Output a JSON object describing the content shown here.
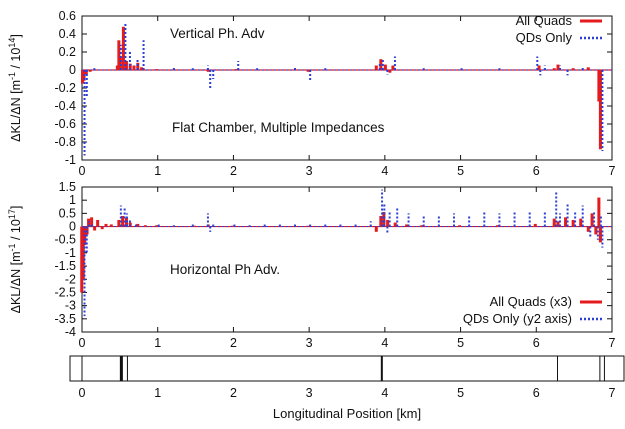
{
  "chart_data": [
    {
      "type": "line",
      "panel": "top",
      "ylabel_html": [
        "ΔKL/ΔN  [m",
        "-1",
        " / 10",
        "14",
        "]"
      ],
      "xlim": [
        0,
        7
      ],
      "ylim": [
        -1,
        0.6
      ],
      "yticks": [
        "0.6",
        "0.4",
        "0.2",
        "0",
        "-0.2",
        "-0.4",
        "-0.6",
        "-0.8",
        "-1"
      ],
      "xticks": [
        "0",
        "1",
        "2",
        "3",
        "4",
        "5",
        "6",
        "7"
      ],
      "annotations": [
        "Vertical Ph. Adv",
        "Flat Chamber, Multiple Impedances"
      ],
      "legend_position": "top-right",
      "series": [
        {
          "name": "All Quads",
          "color": "#e41a1c",
          "style": "impulse",
          "points": [
            [
              0.02,
              -0.15
            ],
            [
              0.04,
              -0.12
            ],
            [
              0.07,
              -0.05
            ],
            [
              0.12,
              -0.02
            ],
            [
              0.48,
              0.05
            ],
            [
              0.5,
              0.33
            ],
            [
              0.52,
              0.15
            ],
            [
              0.56,
              0.48
            ],
            [
              0.6,
              0.1
            ],
            [
              0.65,
              0.07
            ],
            [
              0.7,
              0.05
            ],
            [
              0.75,
              0.08
            ],
            [
              0.8,
              0.03
            ],
            [
              1.0,
              0.01
            ],
            [
              1.68,
              -0.02
            ],
            [
              2.05,
              0.01
            ],
            [
              3.0,
              -0.02
            ],
            [
              3.9,
              0.05
            ],
            [
              3.96,
              0.12
            ],
            [
              4.02,
              0.06
            ],
            [
              4.08,
              -0.03
            ],
            [
              4.12,
              0.05
            ],
            [
              6.05,
              0.05
            ],
            [
              6.25,
              0.02
            ],
            [
              6.3,
              0.06
            ],
            [
              6.5,
              0.02
            ],
            [
              6.7,
              0.03
            ],
            [
              6.84,
              -0.35
            ],
            [
              6.86,
              -0.88
            ]
          ]
        },
        {
          "name": "QDs Only",
          "color": "#2b3fd6",
          "style": "impulse",
          "points": [
            [
              0.02,
              -0.95
            ],
            [
              0.05,
              -0.3
            ],
            [
              0.15,
              0.02
            ],
            [
              0.5,
              0.28
            ],
            [
              0.56,
              0.52
            ],
            [
              0.62,
              0.22
            ],
            [
              0.72,
              0.12
            ],
            [
              0.8,
              0.33
            ],
            [
              1.2,
              0.03
            ],
            [
              1.45,
              0.02
            ],
            [
              1.65,
              0.05
            ],
            [
              1.68,
              -0.2
            ],
            [
              1.72,
              -0.1
            ],
            [
              2.05,
              0.1
            ],
            [
              2.3,
              0.02
            ],
            [
              2.8,
              0.03
            ],
            [
              3.0,
              -0.12
            ],
            [
              3.2,
              0.02
            ],
            [
              3.92,
              0.08
            ],
            [
              3.96,
              0.12
            ],
            [
              4.02,
              -0.05
            ],
            [
              4.12,
              0.15
            ],
            [
              4.5,
              0.02
            ],
            [
              5.0,
              0.02
            ],
            [
              5.5,
              0.02
            ],
            [
              6.0,
              0.15
            ],
            [
              6.04,
              -0.06
            ],
            [
              6.1,
              0.05
            ],
            [
              6.3,
              0.05
            ],
            [
              6.4,
              -0.06
            ],
            [
              6.6,
              0.03
            ],
            [
              6.86,
              -0.9
            ]
          ]
        }
      ]
    },
    {
      "type": "line",
      "panel": "bottom",
      "ylabel_html": [
        "ΔKL/ΔN  [m",
        "-1",
        " / 10",
        "17",
        "]"
      ],
      "xlim": [
        0,
        7
      ],
      "ylim": [
        -4,
        1.5
      ],
      "yticks": [
        "1.5",
        "1",
        "0.5",
        "0",
        "-0.5",
        "-1",
        "-1.5",
        "-2",
        "-2.5",
        "-3",
        "-3.5",
        "-4"
      ],
      "xticks": [
        "0",
        "1",
        "2",
        "3",
        "4",
        "5",
        "6",
        "7"
      ],
      "annotations": [
        "Horizontal Ph Adv."
      ],
      "legend_position": "bottom-right",
      "series": [
        {
          "name": "All Quads (x3)",
          "color": "#e41a1c",
          "style": "impulse",
          "points": [
            [
              0.01,
              -2.5
            ],
            [
              0.03,
              -2.0
            ],
            [
              0.05,
              -0.7
            ],
            [
              0.08,
              -0.3
            ],
            [
              0.1,
              0.3
            ],
            [
              0.14,
              0.35
            ],
            [
              0.18,
              -0.15
            ],
            [
              0.22,
              0.25
            ],
            [
              0.28,
              -0.1
            ],
            [
              0.33,
              0.1
            ],
            [
              0.4,
              0.08
            ],
            [
              0.5,
              0.25
            ],
            [
              0.55,
              0.4
            ],
            [
              0.6,
              0.32
            ],
            [
              0.65,
              0.15
            ],
            [
              0.75,
              0.1
            ],
            [
              0.85,
              0.05
            ],
            [
              1.0,
              0.05
            ],
            [
              1.5,
              0.03
            ],
            [
              1.68,
              0.08
            ],
            [
              2.0,
              0.03
            ],
            [
              2.5,
              0.02
            ],
            [
              3.0,
              0.03
            ],
            [
              3.5,
              0.02
            ],
            [
              3.9,
              -0.2
            ],
            [
              3.96,
              0.4
            ],
            [
              4.0,
              0.55
            ],
            [
              4.05,
              0.25
            ],
            [
              4.15,
              0.15
            ],
            [
              4.3,
              0.08
            ],
            [
              4.5,
              0.05
            ],
            [
              5.0,
              0.05
            ],
            [
              5.5,
              0.05
            ],
            [
              6.0,
              0.1
            ],
            [
              6.25,
              0.3
            ],
            [
              6.3,
              0.2
            ],
            [
              6.4,
              0.35
            ],
            [
              6.5,
              0.25
            ],
            [
              6.6,
              0.3
            ],
            [
              6.7,
              -0.2
            ],
            [
              6.75,
              0.5
            ],
            [
              6.8,
              -0.3
            ],
            [
              6.84,
              1.1
            ],
            [
              6.86,
              -0.6
            ]
          ]
        },
        {
          "name": "QDs Only (y2 axis)",
          "color": "#2b3fd6",
          "style": "impulse",
          "points": [
            [
              0.02,
              -3.4
            ],
            [
              0.05,
              -1.0
            ],
            [
              0.08,
              0.2
            ],
            [
              0.12,
              0.1
            ],
            [
              0.5,
              0.8
            ],
            [
              0.55,
              0.7
            ],
            [
              0.58,
              0.5
            ],
            [
              0.62,
              0.3
            ],
            [
              0.7,
              0.15
            ],
            [
              1.0,
              0.1
            ],
            [
              1.2,
              0.05
            ],
            [
              1.45,
              0.15
            ],
            [
              1.65,
              0.5
            ],
            [
              1.68,
              -0.2
            ],
            [
              1.72,
              0.1
            ],
            [
              2.0,
              0.1
            ],
            [
              2.2,
              0.05
            ],
            [
              2.4,
              0.12
            ],
            [
              2.6,
              0.1
            ],
            [
              2.8,
              0.15
            ],
            [
              3.0,
              0.1
            ],
            [
              3.2,
              0.15
            ],
            [
              3.4,
              0.1
            ],
            [
              3.6,
              0.15
            ],
            [
              3.8,
              0.2
            ],
            [
              3.95,
              1.4
            ],
            [
              3.98,
              0.9
            ],
            [
              4.02,
              -0.3
            ],
            [
              4.05,
              0.6
            ],
            [
              4.15,
              0.7
            ],
            [
              4.3,
              0.5
            ],
            [
              4.5,
              0.4
            ],
            [
              4.7,
              0.4
            ],
            [
              4.9,
              0.5
            ],
            [
              5.1,
              0.45
            ],
            [
              5.3,
              0.55
            ],
            [
              5.5,
              0.5
            ],
            [
              5.7,
              0.55
            ],
            [
              5.9,
              0.6
            ],
            [
              6.1,
              0.6
            ],
            [
              6.25,
              1.3
            ],
            [
              6.3,
              0.5
            ],
            [
              6.4,
              0.9
            ],
            [
              6.5,
              0.6
            ],
            [
              6.6,
              0.8
            ],
            [
              6.7,
              -0.4
            ],
            [
              6.75,
              0.6
            ],
            [
              6.8,
              -0.5
            ],
            [
              6.84,
              0.4
            ],
            [
              6.86,
              -0.8
            ]
          ]
        }
      ]
    },
    {
      "type": "bar",
      "panel": "lattice",
      "xlim": [
        0,
        7
      ],
      "xticks": [
        "0",
        "1",
        "2",
        "3",
        "4",
        "5",
        "6",
        "7"
      ],
      "xlabel": "Longitudinal Position [km]",
      "markers": [
        {
          "x": 0.0,
          "weight": 1
        },
        {
          "x": 0.52,
          "weight": 3
        },
        {
          "x": 0.6,
          "weight": 1
        },
        {
          "x": 3.96,
          "weight": 2
        },
        {
          "x": 6.28,
          "weight": 1
        },
        {
          "x": 6.84,
          "weight": 1
        },
        {
          "x": 6.9,
          "weight": 1
        }
      ]
    }
  ]
}
